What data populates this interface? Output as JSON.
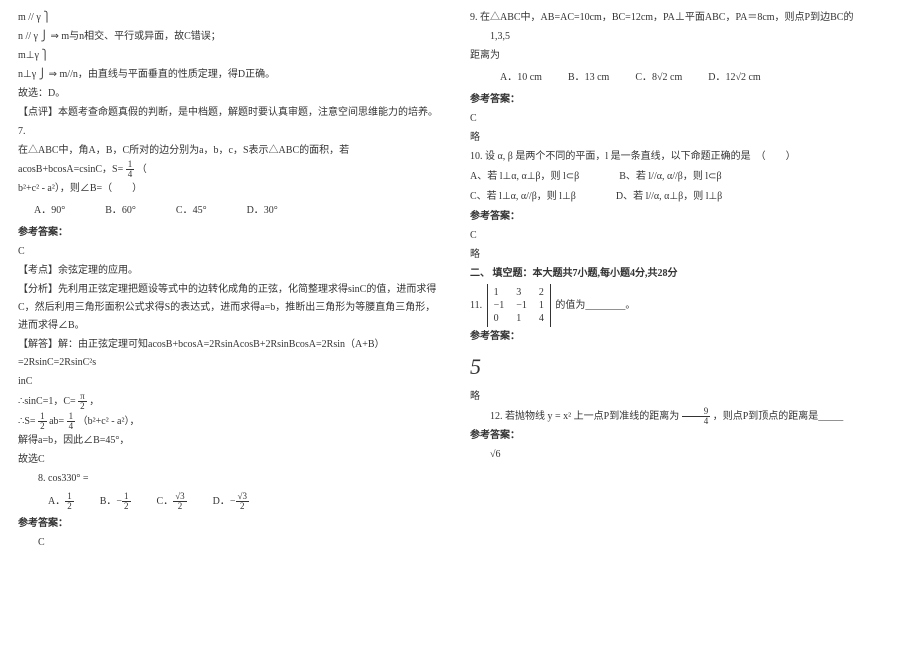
{
  "left": {
    "l1": "m // γ ⎫",
    "l2": "n // γ ⎭ ⇒ m与n相交、平行或异面，故C错误；",
    "l3": "m⊥γ ⎫",
    "l4": "n⊥γ ⎭ ⇒ m//n，由直线与平面垂直的性质定理，得D正确。",
    "l5": "故选：D。",
    "l6": "【点评】本题考查命题真假的判断，是中档题，解题时要认真审题，注意空间思维能力的培养。",
    "q7": "7.",
    "q7a": "在△ABC中，角A，B，C所对的边分别为a，b，c，S表示△ABC的面积，若acosB+bcosA=csinC，S=",
    "q7b": "（",
    "q7c": "b²+c² - a²），则∠B=（　　）",
    "opt7": {
      "A": "A．90°",
      "B": "B．60°",
      "C": "C．45°",
      "D": "D．30°"
    },
    "ansHead": "参考答案：",
    "ans7": "C",
    "kd": "【考点】余弦定理的应用。",
    "fx": "【分析】先利用正弦定理把题设等式中的边转化成角的正弦，化简整理求得sinC的值，进而求得C，然后利用三角形面积公式求得S的表达式，进而求得a=b，推断出三角形为等腰直角三角形，进而求得∠B。",
    "jd": "【解答】解：由正弦定理可知acosB+bcosA=2RsinAcosB+2RsinBcosA=2Rsin（A+B）=2RsinC=2RsinC²s",
    "jd2": "inC",
    "sc": "∴sinC=1，C=",
    "seq": "∴S=",
    "seq2": "ab=",
    "seq3": "（b²+c² - a²），",
    "seq4": "解得a=b，因此∠B=45°，",
    "seq5": "故选C",
    "q8": "8.",
    "q8a": "cos330° =",
    "opt8": {
      "A": "A．",
      "B": "B．",
      "C": "C．",
      "D": "D．"
    },
    "opt8v": {
      "A1": "1",
      "A2": "2",
      "B1": "1",
      "B2": "2",
      "C1": "√3",
      "C2": "2",
      "D1": "√3",
      "D2": "2"
    },
    "ans8": "C",
    "frac14n": "1",
    "frac14d": "4",
    "pi": "π",
    "two": "2",
    "one": "1",
    "four": "4"
  },
  "right": {
    "q9a": "9. 在△ABC中，AB=AC=10cm，BC=12cm，PA⊥平面ABC，PA＝8cm，则点P到边BC的",
    "q9b": "1,3,5",
    "q9c": "距离为",
    "opt9": {
      "A": "A．10 cm",
      "B": "B．13 cm",
      "C": "C．",
      "D": "D．"
    },
    "opt9cVal": "8√2 cm",
    "opt9dVal": "12√2 cm",
    "ansHead": "参考答案：",
    "ans9": "C",
    "lue": "略",
    "q10": "10. 设 α, β 是两个不同的平面，l 是一条直线，以下命题正确的是　（　　）",
    "opt10A": "A、若 l⊥α, α⊥β，则 l⊂β",
    "opt10B": "B、若 l//α, α//β，则 l⊂β",
    "opt10C": "C、若 l⊥α, α//β，则 l⊥β",
    "opt10D": "D、若 l//α, α⊥β，则 l⊥β",
    "ans10": "C",
    "secHead": "二、 填空题：本大题共7小题,每小题4分,共28分",
    "q11l": "11.",
    "q11r": "的值为________。",
    "m11": {
      "r1": [
        "1",
        "3",
        "2"
      ],
      "r2": [
        "−1",
        "−1",
        "1"
      ],
      "r3": [
        "0",
        "1",
        "4"
      ]
    },
    "ans11": "5",
    "q12a": "12. 若抛物线",
    "q12expr": "y = x²",
    "q12b": "上一点P到准线的距离为",
    "q12c": "，则点P到顶点的距离是_____",
    "frac94n": "9",
    "frac94d": "4",
    "ans12": "√6"
  }
}
